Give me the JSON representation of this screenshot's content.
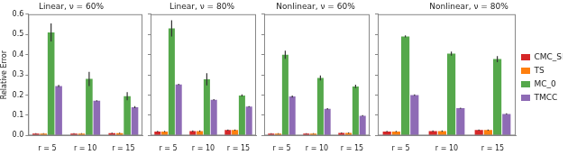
{
  "chart_data": [
    {
      "type": "bar",
      "title": "Linear, ν = 60%",
      "y_label": "Relative Error",
      "categories": [
        "r = 5",
        "r = 10",
        "r = 15"
      ],
      "series": [
        {
          "name": "CMC_SI",
          "color": "#d62728",
          "values": [
            0.01,
            0.01,
            0.012
          ],
          "errors": [
            0.002,
            0.002,
            0.002
          ]
        },
        {
          "name": "TS",
          "color": "#ff7f0e",
          "values": [
            0.01,
            0.01,
            0.012
          ],
          "errors": [
            0.002,
            0.002,
            0.002
          ]
        },
        {
          "name": "MC_0",
          "color": "#55a84b",
          "values": [
            0.51,
            0.28,
            0.195
          ],
          "errors": [
            0.045,
            0.035,
            0.02
          ]
        },
        {
          "name": "TMCC",
          "color": "#8e6bb5",
          "values": [
            0.245,
            0.172,
            0.14
          ],
          "errors": [
            0.005,
            0.003,
            0.005
          ]
        }
      ],
      "ylim": [
        0,
        0.6
      ],
      "yticks": [
        {
          "value": 0,
          "label": "0.0"
        },
        0.1,
        0.2,
        0.3,
        0.4,
        0.5,
        0.6
      ],
      "grid": false
    },
    {
      "type": "bar",
      "title": "Linear, ν = 80%",
      "categories": [
        "r = 5",
        "r = 10",
        "r = 15"
      ],
      "series": [
        {
          "name": "CMC_SI",
          "color": "#d62728",
          "values": [
            0.02,
            0.022,
            0.027
          ],
          "errors": [
            0.003,
            0.003,
            0.003
          ]
        },
        {
          "name": "TS",
          "color": "#ff7f0e",
          "values": [
            0.02,
            0.022,
            0.027
          ],
          "errors": [
            0.003,
            0.003,
            0.003
          ]
        },
        {
          "name": "MC_0",
          "color": "#55a84b",
          "values": [
            0.53,
            0.278,
            0.198
          ],
          "errors": [
            0.04,
            0.03,
            0.005
          ]
        },
        {
          "name": "TMCC",
          "color": "#8e6bb5",
          "values": [
            0.253,
            0.177,
            0.143
          ],
          "errors": [
            0.003,
            0.003,
            0.003
          ]
        }
      ],
      "ylim": [
        0,
        0.6
      ],
      "yticks": [
        {
          "value": 0,
          "label": "0.0"
        },
        0.1,
        0.2,
        0.3,
        0.4,
        0.5,
        0.6
      ],
      "grid": false,
      "tick_labels": "x"
    },
    {
      "type": "bar",
      "title": "Nonlinear, ν = 60%",
      "categories": [
        "r = 5",
        "r = 10",
        "r = 15"
      ],
      "series": [
        {
          "name": "CMC_SI",
          "color": "#d62728",
          "values": [
            0.01,
            0.01,
            0.013
          ],
          "errors": [
            0.002,
            0.002,
            0.002
          ]
        },
        {
          "name": "TS",
          "color": "#ff7f0e",
          "values": [
            0.01,
            0.01,
            0.013
          ],
          "errors": [
            0.002,
            0.002,
            0.002
          ]
        },
        {
          "name": "MC_0",
          "color": "#55a84b",
          "values": [
            0.4,
            0.285,
            0.243
          ],
          "errors": [
            0.02,
            0.012,
            0.008
          ]
        },
        {
          "name": "TMCC",
          "color": "#8e6bb5",
          "values": [
            0.193,
            0.132,
            0.098
          ],
          "errors": [
            0.005,
            0.003,
            0.003
          ]
        }
      ],
      "ylim": [
        0,
        0.6
      ],
      "yticks": [
        {
          "value": 0,
          "label": "0.0"
        },
        0.1,
        0.2,
        0.3,
        0.4,
        0.5,
        0.6
      ],
      "grid": false,
      "tick_labels": "x"
    },
    {
      "type": "bar",
      "title": "Nonlinear, ν = 80%",
      "categories": [
        "r = 5",
        "r = 10",
        "r = 15"
      ],
      "series": [
        {
          "name": "CMC_SI",
          "color": "#d62728",
          "values": [
            0.02,
            0.022,
            0.027
          ],
          "errors": [
            0.003,
            0.003,
            0.003
          ]
        },
        {
          "name": "TS",
          "color": "#ff7f0e",
          "values": [
            0.02,
            0.022,
            0.027
          ],
          "errors": [
            0.003,
            0.003,
            0.003
          ]
        },
        {
          "name": "MC_0",
          "color": "#55a84b",
          "values": [
            0.49,
            0.405,
            0.378
          ],
          "errors": [
            0.005,
            0.01,
            0.015
          ]
        },
        {
          "name": "TMCC",
          "color": "#8e6bb5",
          "values": [
            0.2,
            0.135,
            0.107
          ],
          "errors": [
            0.003,
            0.003,
            0.003
          ]
        }
      ],
      "ylim": [
        0,
        0.6
      ],
      "yticks": [
        {
          "value": 0,
          "label": "0.0"
        },
        0.1,
        0.2,
        0.3,
        0.4,
        0.5,
        0.6
      ],
      "grid": false,
      "tick_labels": "x",
      "legend": "right"
    }
  ]
}
